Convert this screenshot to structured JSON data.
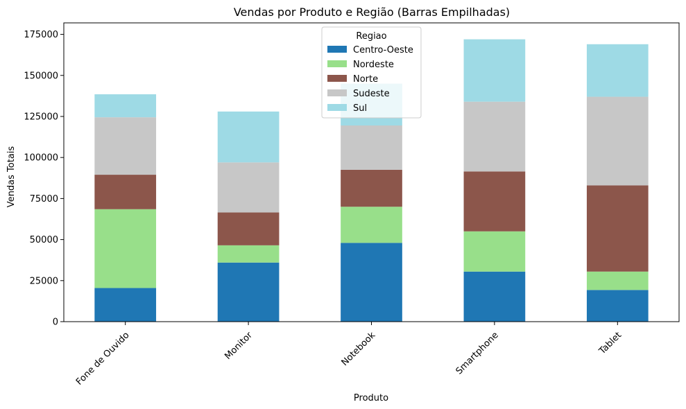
{
  "chart_data": {
    "type": "bar",
    "stacked": true,
    "title": "Vendas por Produto e Região (Barras Empilhadas)",
    "xlabel": "Produto",
    "ylabel": "Vendas Totais",
    "categories": [
      "Fone de Ouvido",
      "Monitor",
      "Notebook",
      "Smartphone",
      "Tablet"
    ],
    "ylim": [
      0,
      182000
    ],
    "yticks": [
      0,
      25000,
      50000,
      75000,
      100000,
      125000,
      150000,
      175000
    ],
    "series": [
      {
        "name": "Centro-Oeste",
        "color": "#1f77b4",
        "values": [
          20500,
          36000,
          48000,
          30500,
          19300
        ]
      },
      {
        "name": "Nordeste",
        "color": "#98df8a",
        "values": [
          48000,
          10500,
          22000,
          24500,
          11200
        ]
      },
      {
        "name": "Norte",
        "color": "#8c564b",
        "values": [
          21000,
          20000,
          22500,
          36500,
          52500
        ]
      },
      {
        "name": "Sudeste",
        "color": "#c7c7c7",
        "values": [
          35000,
          30500,
          27000,
          42500,
          54000
        ]
      },
      {
        "name": "Sul",
        "color": "#9edae5",
        "values": [
          14000,
          31000,
          25500,
          38000,
          32000
        ]
      }
    ],
    "legend": {
      "title": "Regiao",
      "placement": "top-center"
    },
    "grid": false
  }
}
